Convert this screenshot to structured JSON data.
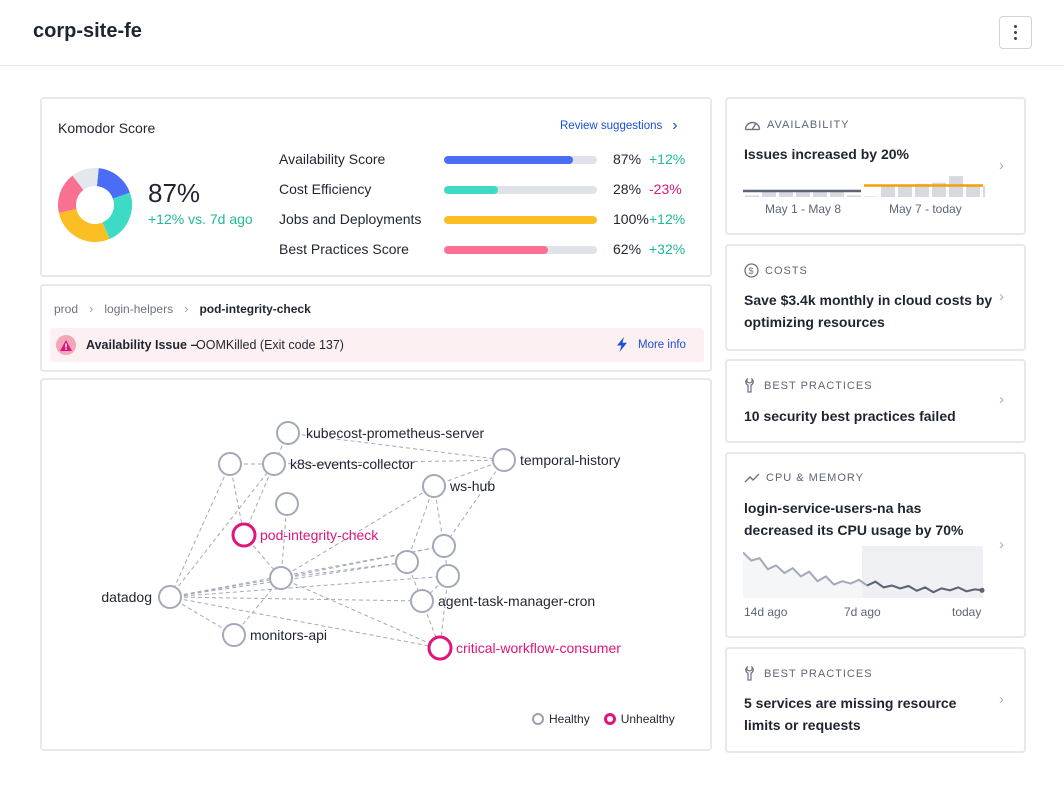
{
  "header": {
    "title": "corp-site-fe"
  },
  "score": {
    "title": "Komodor Score",
    "review_label": "Review suggestions",
    "value": "87%",
    "delta": "+12% vs. 7d ago",
    "donut_colors": [
      "#4a6cf7",
      "#3ddbc5",
      "#fbbf24",
      "#f87190",
      "#e5e7ef"
    ],
    "metrics": [
      {
        "label": "Availability Score",
        "value": "87%",
        "delta": "+12%",
        "fraction": 0.84,
        "color": "#4a6cf7",
        "delta_color": "#1fb99a"
      },
      {
        "label": "Cost Efficiency",
        "value": "28%",
        "delta": "-23%",
        "fraction": 0.35,
        "color": "#3ddbc5",
        "delta_color": "#e0157a"
      },
      {
        "label": "Jobs and Deployments",
        "value": "100%",
        "delta": "+12%",
        "fraction": 1.0,
        "color": "#fbbf24",
        "delta_color": "#1fb99a"
      },
      {
        "label": "Best Practices Score",
        "value": "62%",
        "delta": "+32%",
        "fraction": 0.68,
        "color": "#f87190",
        "delta_color": "#1fb99a"
      }
    ]
  },
  "breadcrumb": {
    "items": [
      "prod",
      "login-helpers",
      "pod-integrity-check"
    ]
  },
  "issue": {
    "label": "Availability Issue –",
    "detail": "OOMKilled (Exit code 137)",
    "more": "More info"
  },
  "graph": {
    "nodes": [
      {
        "id": "kubecost",
        "label": "kubecost-prometheus-server",
        "status": "healthy"
      },
      {
        "id": "k8s",
        "label": "k8s-events-collector",
        "status": "healthy"
      },
      {
        "id": "temporal",
        "label": "temporal-history",
        "status": "healthy"
      },
      {
        "id": "ws",
        "label": "ws-hub",
        "status": "healthy"
      },
      {
        "id": "pod",
        "label": "pod-integrity-check",
        "status": "unhealthy"
      },
      {
        "id": "datadog",
        "label": "datadog",
        "status": "healthy"
      },
      {
        "id": "agent",
        "label": "agent-task-manager-cron",
        "status": "healthy"
      },
      {
        "id": "monitors",
        "label": "monitors-api",
        "status": "healthy"
      },
      {
        "id": "critical",
        "label": "critical-workflow-consumer",
        "status": "unhealthy"
      },
      {
        "id": "n_a",
        "label": "",
        "status": "healthy"
      },
      {
        "id": "n_b",
        "label": "",
        "status": "healthy"
      },
      {
        "id": "n_c",
        "label": "",
        "status": "healthy"
      },
      {
        "id": "n_d",
        "label": "",
        "status": "healthy"
      },
      {
        "id": "n_e",
        "label": "",
        "status": "healthy"
      },
      {
        "id": "n_f",
        "label": "",
        "status": "healthy"
      }
    ],
    "edges": [
      [
        "kubecost",
        "temporal"
      ],
      [
        "kubecost",
        "k8s"
      ],
      [
        "k8s",
        "temporal"
      ],
      [
        "n_a",
        "k8s"
      ],
      [
        "n_a",
        "datadog"
      ],
      [
        "n_a",
        "pod"
      ],
      [
        "k8s",
        "pod"
      ],
      [
        "n_b",
        "n_e"
      ],
      [
        "temporal",
        "ws"
      ],
      [
        "temporal",
        "n_d"
      ],
      [
        "ws",
        "n_c"
      ],
      [
        "ws",
        "n_d"
      ],
      [
        "pod",
        "n_e"
      ],
      [
        "n_e",
        "ws"
      ],
      [
        "n_e",
        "n_d"
      ],
      [
        "n_e",
        "n_c"
      ],
      [
        "n_e",
        "monitors"
      ],
      [
        "n_e",
        "critical"
      ],
      [
        "datadog",
        "n_e"
      ],
      [
        "datadog",
        "n_c"
      ],
      [
        "datadog",
        "n_d"
      ],
      [
        "datadog",
        "n_f"
      ],
      [
        "datadog",
        "agent"
      ],
      [
        "datadog",
        "critical"
      ],
      [
        "datadog",
        "monitors"
      ],
      [
        "n_c",
        "agent"
      ],
      [
        "n_f",
        "agent"
      ],
      [
        "n_d",
        "n_f"
      ],
      [
        "agent",
        "critical"
      ],
      [
        "n_f",
        "critical"
      ],
      [
        "datadog",
        "k8s"
      ]
    ],
    "legend_healthy": "Healthy",
    "legend_unhealthy": "Unhealthy"
  },
  "side": {
    "availability": {
      "category": "AVAILABILITY",
      "message": "Issues increased by 20%",
      "range1": "May 1 - May 8",
      "range2": "May 7 - today",
      "bars_before": [
        0.15,
        0.55,
        0.55,
        0.55,
        0.55,
        0.55,
        0.15
      ],
      "bars_after": [
        0.05,
        1.0,
        1.0,
        1.2,
        1.3,
        1.9,
        1.0,
        1.0
      ],
      "avg_before": 0.55,
      "avg_after": 1.05
    },
    "costs": {
      "category": "COSTS",
      "message": "Save $3.4k monthly in cloud costs by optimizing resources"
    },
    "best1": {
      "category": "BEST PRACTICES",
      "message": "10 security best practices failed"
    },
    "cpu": {
      "category": "CPU & MEMORY",
      "message": "login-service-users-na has decreased its CPU usage by 70%",
      "ticks": [
        "14d ago",
        "7d ago",
        "today"
      ],
      "series": [
        0.95,
        0.78,
        0.83,
        0.6,
        0.68,
        0.52,
        0.62,
        0.45,
        0.55,
        0.35,
        0.45,
        0.28,
        0.35,
        0.3,
        0.38,
        0.26,
        0.34,
        0.22,
        0.26,
        0.2,
        0.25,
        0.15,
        0.22,
        0.12,
        0.2,
        0.16,
        0.22,
        0.14,
        0.18,
        0.16
      ]
    },
    "best2": {
      "category": "BEST PRACTICES",
      "message": "5 services are missing resource limits or requests"
    }
  }
}
